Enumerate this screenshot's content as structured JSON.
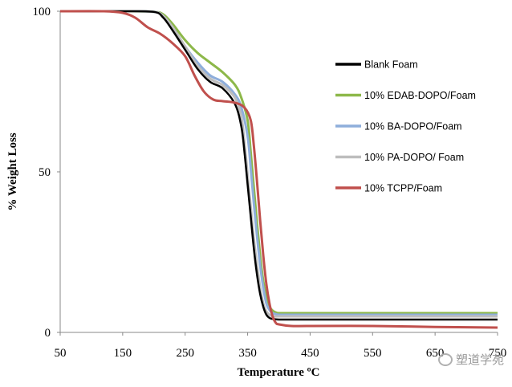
{
  "chart_data": {
    "type": "line",
    "title": "",
    "xlabel": "Temperature ºC",
    "ylabel": "% Weight Loss",
    "xlim": [
      50,
      750
    ],
    "ylim": [
      0,
      100
    ],
    "x_ticks": [
      "50",
      "150",
      "250",
      "350",
      "450",
      "550",
      "650",
      "750"
    ],
    "y_ticks": [
      "0",
      "50",
      "100"
    ],
    "grid": false,
    "legend_position": "right",
    "series": [
      {
        "name": "Blank Foam",
        "color": "#000000",
        "x": [
          50,
          150,
          200,
          215,
          230,
          250,
          270,
          290,
          310,
          330,
          340,
          345,
          350,
          355,
          360,
          365,
          370,
          375,
          380,
          385,
          390,
          400,
          420,
          450,
          550,
          650,
          750
        ],
        "y": [
          100,
          100,
          99.8,
          98,
          94,
          88,
          82,
          78,
          76,
          71,
          64,
          56,
          46,
          36,
          26,
          18,
          12,
          8,
          5.5,
          4.5,
          4.2,
          4,
          4,
          4,
          4,
          4,
          4
        ]
      },
      {
        "name": "10% EDAB-DOPO/Foam",
        "color": "#8db84a",
        "x": [
          50,
          150,
          200,
          215,
          230,
          250,
          270,
          290,
          310,
          330,
          340,
          350,
          355,
          360,
          365,
          370,
          375,
          380,
          385,
          390,
          395,
          400,
          420,
          450,
          550,
          650,
          750
        ],
        "y": [
          100,
          100,
          99.8,
          99,
          96,
          91,
          87,
          84,
          81,
          77,
          73,
          66,
          56,
          45,
          34,
          24,
          16,
          11,
          8,
          6.8,
          6.2,
          6,
          6,
          6,
          6,
          6,
          6
        ]
      },
      {
        "name": "10% BA-DOPO/Foam",
        "color": "#8eaedb",
        "x": [
          50,
          150,
          200,
          215,
          230,
          250,
          270,
          290,
          310,
          330,
          340,
          350,
          355,
          360,
          365,
          370,
          375,
          380,
          385,
          390,
          395,
          400,
          420,
          450,
          550,
          650,
          750
        ],
        "y": [
          100,
          100,
          99.8,
          98.5,
          95,
          89,
          84,
          80,
          78,
          74,
          70,
          61,
          51,
          40,
          30,
          21,
          14,
          9,
          7,
          6,
          5.7,
          5.5,
          5.5,
          5.5,
          5.5,
          5.5,
          5.5
        ]
      },
      {
        "name": "10% PA-DOPO/ Foam",
        "color": "#bdbdbd",
        "x": [
          50,
          150,
          200,
          215,
          230,
          250,
          270,
          290,
          310,
          330,
          340,
          345,
          350,
          355,
          360,
          365,
          370,
          375,
          380,
          385,
          390,
          400,
          420,
          450,
          550,
          650,
          750
        ],
        "y": [
          100,
          100,
          99.8,
          98.5,
          95,
          89,
          83,
          79,
          77,
          73,
          67,
          59,
          49,
          39,
          29,
          21,
          14,
          9,
          6.5,
          5.5,
          5,
          5,
          5,
          5,
          5,
          5,
          5
        ]
      },
      {
        "name": "10% TCPP/Foam",
        "color": "#c0504d",
        "x": [
          50,
          120,
          150,
          170,
          190,
          210,
          230,
          250,
          265,
          280,
          295,
          310,
          330,
          345,
          355,
          360,
          365,
          370,
          375,
          380,
          385,
          390,
          395,
          400,
          420,
          450,
          550,
          650,
          750
        ],
        "y": [
          100,
          100,
          99.5,
          98,
          95,
          93,
          90,
          86,
          80,
          75,
          72.5,
          72,
          71.5,
          70,
          66,
          58,
          47,
          35,
          24,
          15,
          9,
          5,
          3,
          2.5,
          2,
          2,
          2,
          1.7,
          1.5
        ]
      }
    ]
  },
  "watermark": {
    "text": "塑道学苑",
    "icon": "wechat-icon"
  }
}
